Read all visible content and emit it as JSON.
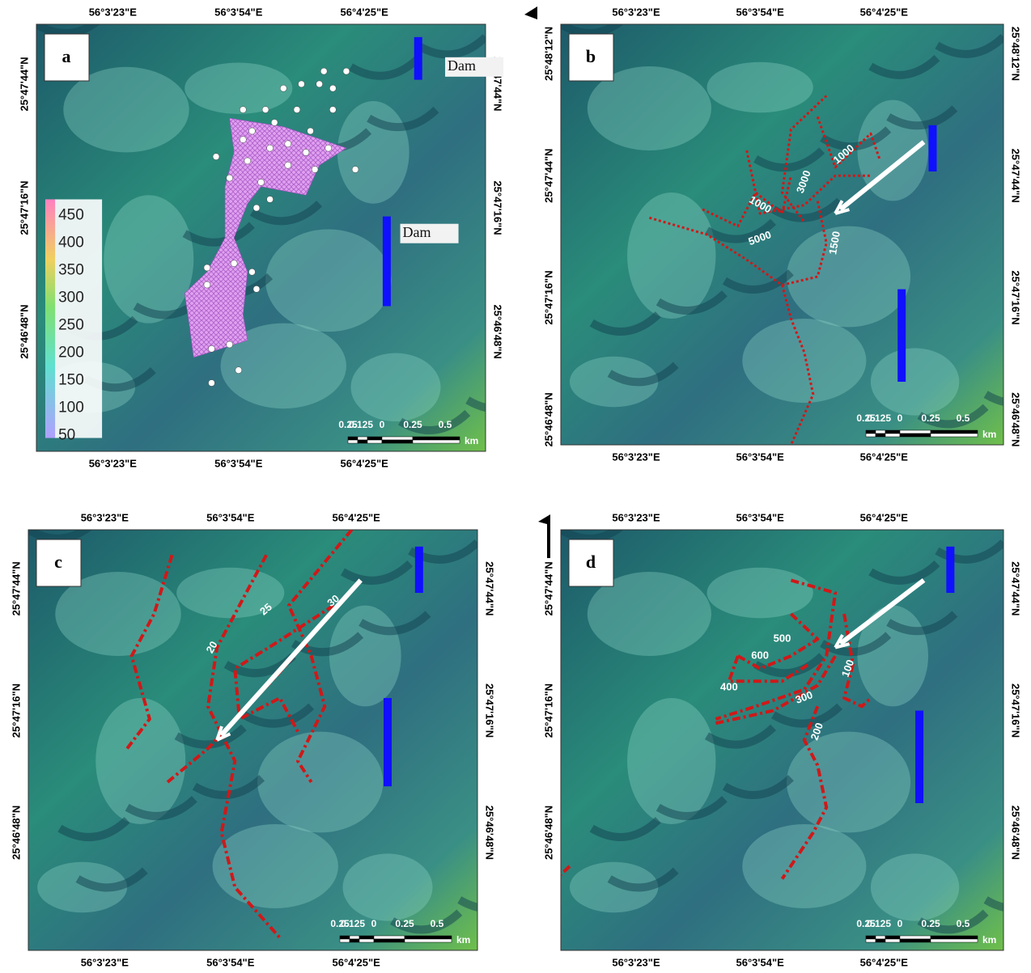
{
  "panels": [
    {
      "label": "a",
      "top_lon": [
        "56°3'23\"E",
        "56°3'54\"E",
        "56°4'25\"E"
      ],
      "bottom_lon": [
        "56°3'23\"E",
        "56°3'54\"E",
        "56°4'25\"E"
      ],
      "left_lat": [
        "25°47'44\"N",
        "25°47'16\"N",
        "25°46'48\"N"
      ],
      "right_lat": [
        "25°47'44\"N",
        "25°47'16\"N",
        "25°46'48\"N"
      ],
      "legend": [
        450,
        400,
        350,
        300,
        250,
        200,
        150,
        100,
        50
      ],
      "dam_labels": [
        "Dam",
        "Dam"
      ],
      "scale": [
        "0.25",
        "0.125",
        "0",
        "0.25",
        "0.5",
        "km"
      ]
    },
    {
      "label": "b",
      "top_lon": [
        "56°3'23\"E",
        "56°3'54\"E",
        "56°4'25\"E"
      ],
      "bottom_lon": [
        "56°3'23\"E",
        "56°3'54\"E",
        "56°4'25\"E"
      ],
      "left_lat": [
        "25°48'12\"N",
        "25°47'44\"N",
        "25°47'16\"N",
        "25°46'48\"N"
      ],
      "right_lat": [
        "25°48'12\"N",
        "25°47'44\"N",
        "25°47'16\"N",
        "25°46'48\"N"
      ],
      "contour_labels": [
        1000,
        3000,
        1000,
        5000,
        1500
      ],
      "scale": [
        "0.25",
        "0.125",
        "0",
        "0.25",
        "0.5",
        "km"
      ]
    },
    {
      "label": "c",
      "top_lon": [
        "56°3'23\"E",
        "56°3'54\"E",
        "56°4'25\"E"
      ],
      "bottom_lon": [
        "56°3'23\"E",
        "56°3'54\"E",
        "56°4'25\"E"
      ],
      "left_lat": [
        "25°47'44\"N",
        "25°47'16\"N",
        "25°46'48\"N"
      ],
      "right_lat": [
        "25°47'44\"N",
        "25°47'16\"N",
        "25°46'48\"N"
      ],
      "contour_labels": [
        20,
        25,
        30
      ],
      "scale": [
        "0.25",
        "0.125",
        "0",
        "0.25",
        "0.5",
        "km"
      ]
    },
    {
      "label": "d",
      "top_lon": [
        "56°3'23\"E",
        "56°3'54\"E",
        "56°4'25\"E"
      ],
      "bottom_lon": [
        "56°3'23\"E",
        "56°3'54\"E",
        "56°4'25\"E"
      ],
      "left_lat": [
        "25°47'44\"N",
        "25°47'16\"N",
        "25°46'48\"N"
      ],
      "right_lat": [
        "25°47'44\"N",
        "25°47'16\"N",
        "25°46'48\"N"
      ],
      "contour_labels": [
        500,
        600,
        400,
        300,
        100,
        200
      ],
      "scale": [
        "0.25",
        "0.125",
        "0",
        "0.25",
        "0.5",
        "km"
      ]
    }
  ]
}
